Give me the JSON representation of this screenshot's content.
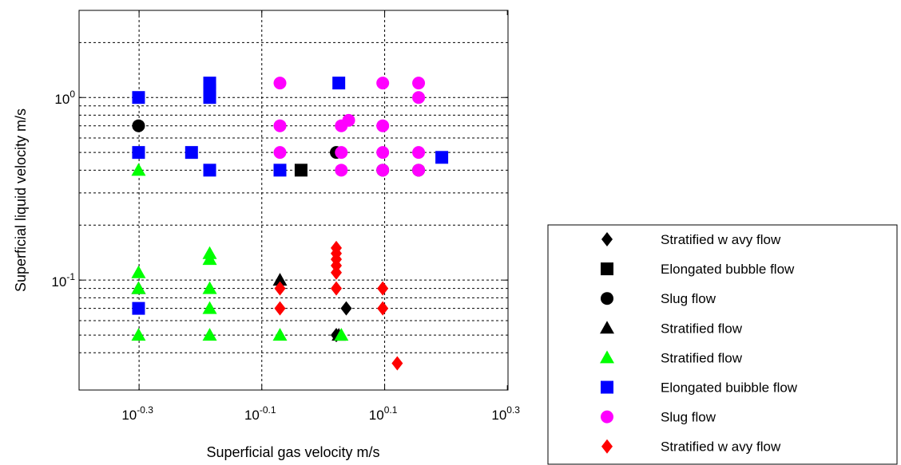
{
  "chart_data": {
    "type": "scatter",
    "xlabel": "Superficial gas velocity m/s",
    "ylabel": "Superficial liquid velocity m/s",
    "x_scale": "log",
    "y_scale": "log",
    "xlim": [
      0.4,
      2.0
    ],
    "ylim": [
      0.025,
      3.0
    ],
    "x_ticks": [
      {
        "value": 0.501,
        "base": "10",
        "exp": "-0.3"
      },
      {
        "value": 0.794,
        "base": "10",
        "exp": "-0.1"
      },
      {
        "value": 1.259,
        "base": "10",
        "exp": "0.1"
      },
      {
        "value": 1.995,
        "base": "10",
        "exp": "0.3"
      }
    ],
    "y_ticks": [
      {
        "value": 0.1,
        "base": "10",
        "exp": "-1"
      },
      {
        "value": 1.0,
        "base": "10",
        "exp": "0"
      }
    ],
    "x_gridlines": [
      0.501,
      0.794,
      1.259
    ],
    "y_gridlines": [
      0.04,
      0.05,
      0.06,
      0.07,
      0.08,
      0.09,
      0.1,
      0.2,
      0.3,
      0.4,
      0.5,
      0.6,
      0.7,
      0.8,
      0.9,
      1.0,
      2.0
    ],
    "grid": true,
    "legend_placement": "right",
    "series": [
      {
        "name": "Stratified w avy flow",
        "marker": "diamond",
        "color": "#000000",
        "points": [
          [
            1.09,
            0.07
          ],
          [
            1.05,
            0.05
          ]
        ]
      },
      {
        "name": "Elongated bubble flow",
        "marker": "square",
        "color": "#000000",
        "points": [
          [
            0.92,
            0.4
          ]
        ]
      },
      {
        "name": "Slug flow",
        "marker": "circle",
        "color": "#000000",
        "points": [
          [
            0.5,
            0.7
          ],
          [
            1.05,
            0.5
          ],
          [
            1.25,
            0.4
          ],
          [
            1.43,
            0.4
          ]
        ]
      },
      {
        "name": "Stratified flow",
        "marker": "triangle",
        "color": "#000000",
        "points": [
          [
            0.5,
            0.09
          ],
          [
            0.85,
            0.1
          ],
          [
            1.06,
            0.05
          ]
        ]
      },
      {
        "name": "Stratified flow",
        "marker": "triangle",
        "color": "#00ff00",
        "points": [
          [
            0.5,
            0.4
          ],
          [
            0.5,
            0.11
          ],
          [
            0.5,
            0.09
          ],
          [
            0.5,
            0.05
          ],
          [
            0.653,
            0.14
          ],
          [
            0.653,
            0.13
          ],
          [
            0.653,
            0.09
          ],
          [
            0.653,
            0.07
          ],
          [
            0.653,
            0.05
          ],
          [
            0.85,
            0.05
          ],
          [
            1.07,
            0.05
          ]
        ]
      },
      {
        "name": "Elongated buibble flow",
        "marker": "square",
        "color": "#0000ff",
        "points": [
          [
            0.5,
            1.0
          ],
          [
            0.5,
            0.5
          ],
          [
            0.5,
            0.07
          ],
          [
            0.61,
            0.5
          ],
          [
            0.653,
            1.2
          ],
          [
            0.653,
            1.1
          ],
          [
            0.653,
            1.0
          ],
          [
            0.653,
            0.4
          ],
          [
            0.85,
            0.4
          ],
          [
            1.06,
            1.2
          ],
          [
            1.56,
            0.47
          ]
        ]
      },
      {
        "name": "Slug flow",
        "marker": "circle",
        "color": "#ff00ff",
        "points": [
          [
            0.85,
            1.2
          ],
          [
            0.85,
            0.7
          ],
          [
            0.85,
            0.5
          ],
          [
            1.07,
            0.7
          ],
          [
            1.1,
            0.75
          ],
          [
            1.07,
            0.5
          ],
          [
            1.07,
            0.4
          ],
          [
            1.25,
            1.2
          ],
          [
            1.25,
            0.7
          ],
          [
            1.25,
            0.5
          ],
          [
            1.25,
            0.4
          ],
          [
            1.43,
            1.2
          ],
          [
            1.43,
            1.0
          ],
          [
            1.43,
            0.5
          ],
          [
            1.43,
            0.4
          ]
        ]
      },
      {
        "name": "Stratified w avy flow",
        "marker": "diamond",
        "color": "#ff0000",
        "points": [
          [
            0.85,
            0.09
          ],
          [
            0.85,
            0.07
          ],
          [
            1.05,
            0.15
          ],
          [
            1.05,
            0.14
          ],
          [
            1.05,
            0.13
          ],
          [
            1.05,
            0.12
          ],
          [
            1.05,
            0.11
          ],
          [
            1.05,
            0.09
          ],
          [
            1.25,
            0.09
          ],
          [
            1.25,
            0.07
          ],
          [
            1.32,
            0.035
          ]
        ]
      }
    ]
  }
}
